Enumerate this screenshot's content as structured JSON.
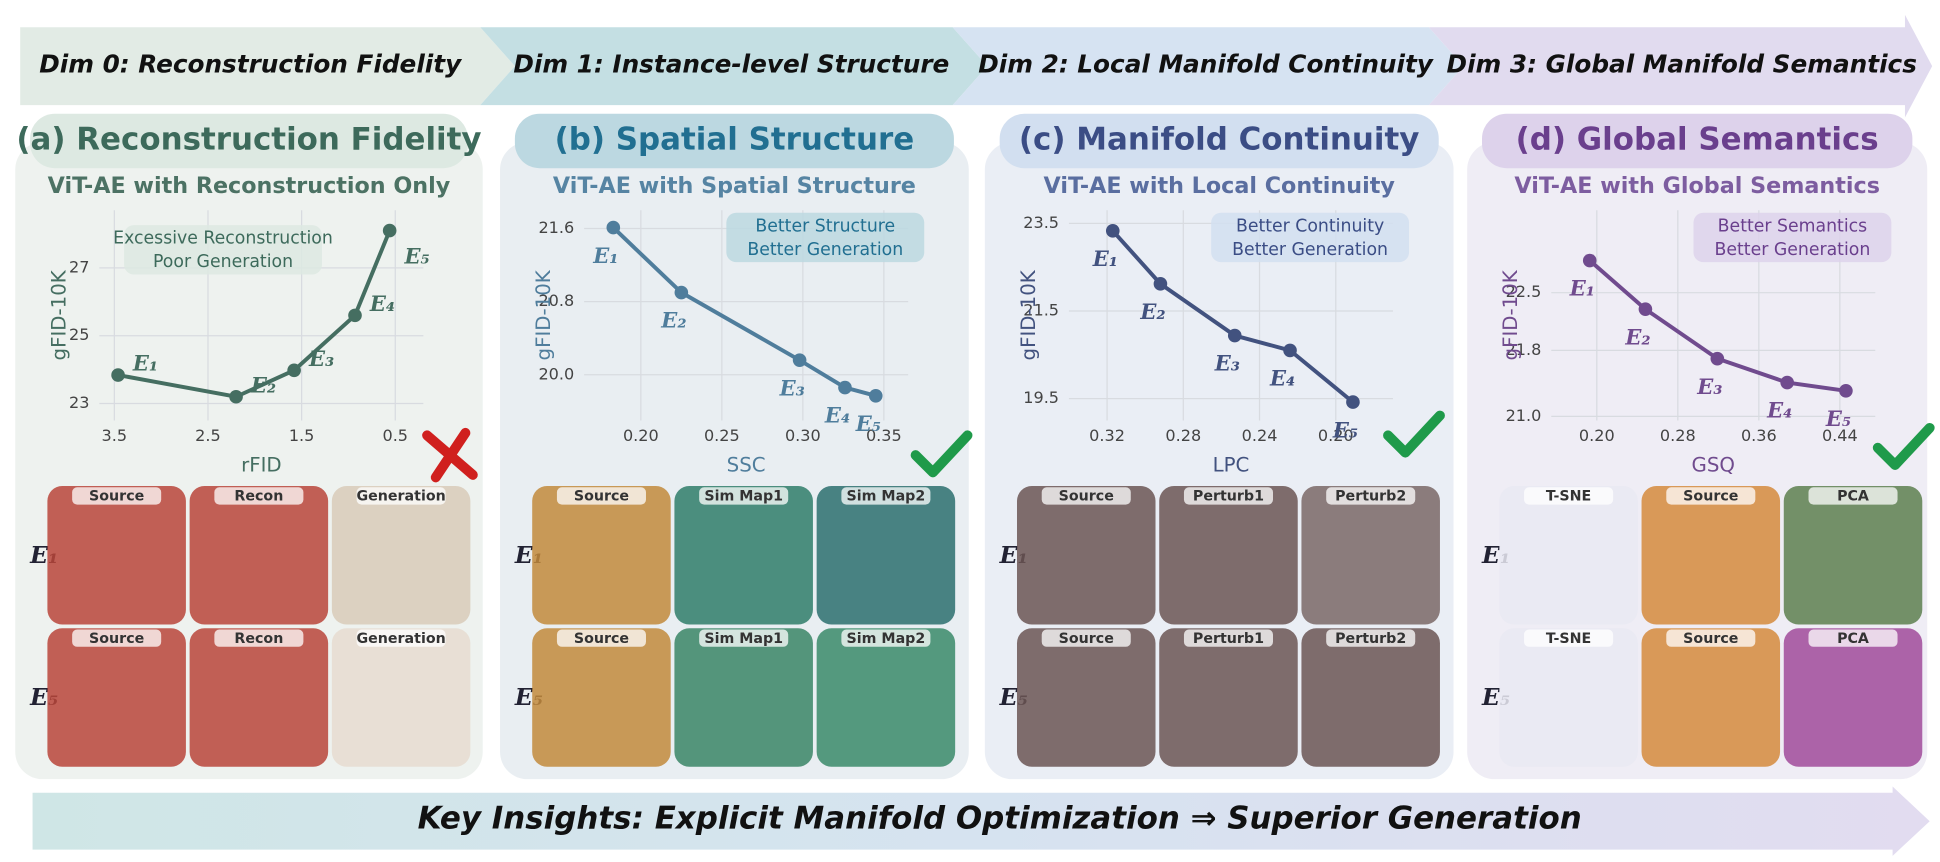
{
  "header": {
    "dims": [
      "Dim 0: Reconstruction Fidelity",
      "Dim 1: Instance-level Structure",
      "Dim 2: Local Manifold Continuity",
      "Dim 3: Global Manifold Semantics"
    ]
  },
  "panels": [
    {
      "title": "(a) Reconstruction Fidelity",
      "subtitle": "ViT-AE with Reconstruction Only",
      "image_rows": [
        {
          "label": "E₁",
          "images": [
            "Source",
            "Recon",
            "Generation"
          ]
        },
        {
          "label": "E₅",
          "images": [
            "Source",
            "Recon",
            "Generation"
          ]
        }
      ]
    },
    {
      "title": "(b) Spatial Structure",
      "subtitle": "ViT-AE with Spatial Structure",
      "image_rows": [
        {
          "label": "E₁",
          "images": [
            "Source",
            "Sim Map1",
            "Sim Map2"
          ]
        },
        {
          "label": "E₅",
          "images": [
            "Source",
            "Sim Map1",
            "Sim Map2"
          ]
        }
      ]
    },
    {
      "title": "(c) Manifold Continuity",
      "subtitle": "ViT-AE with Local Continuity",
      "image_rows": [
        {
          "label": "E₁",
          "images": [
            "Source",
            "Perturb1",
            "Perturb2"
          ]
        },
        {
          "label": "E₅",
          "images": [
            "Source",
            "Perturb1",
            "Perturb2"
          ]
        }
      ]
    },
    {
      "title": "(d) Global Semantics",
      "subtitle": "ViT-AE with Global Semantics",
      "image_rows": [
        {
          "label": "E₁",
          "images": [
            "T-SNE",
            "Source",
            "PCA"
          ]
        },
        {
          "label": "E₅",
          "images": [
            "T-SNE",
            "Source",
            "PCA"
          ]
        }
      ]
    }
  ],
  "chart_data": [
    {
      "type": "line",
      "x_label": "rFID",
      "y_label": "gFID-10K",
      "color": "#456e61",
      "grid": true,
      "x": [
        3.46,
        2.2,
        1.58,
        0.93,
        0.56
      ],
      "values": [
        23.84,
        23.2,
        23.98,
        25.6,
        28.1
      ],
      "point_labels": [
        "E₁",
        "E₂",
        "E₃",
        "E₄",
        "E₅"
      ],
      "xlim": [
        3.66,
        0.2
      ],
      "ylim": [
        22.5,
        28.7
      ],
      "xticks": [
        3.5,
        2.5,
        1.5,
        0.5
      ],
      "yticks": [
        23,
        25,
        27
      ],
      "annotation": [
        "Excessive Reconstruction",
        "Poor Generation"
      ]
    },
    {
      "type": "line",
      "x_label": "SSC",
      "y_label": "gFID-10K",
      "color": "#4f7d9c",
      "grid": true,
      "x": [
        0.183,
        0.225,
        0.298,
        0.326,
        0.345
      ],
      "values": [
        21.61,
        20.9,
        20.16,
        19.86,
        19.77
      ],
      "point_labels": [
        "E₁",
        "E₂",
        "E₃",
        "E₄",
        "E₅"
      ],
      "xlim": [
        0.165,
        0.365
      ],
      "ylim": [
        19.5,
        21.8
      ],
      "xticks": [
        {
          "value": 0.2,
          "label": "0.20"
        },
        0.25,
        {
          "value": 0.3,
          "label": "0.30"
        },
        0.35
      ],
      "yticks": [
        {
          "value": 20,
          "label": "20.0"
        },
        20.8,
        21.6
      ],
      "annotation": [
        "Better Structure",
        "Better Generation"
      ]
    },
    {
      "type": "line",
      "x_label": "LPC",
      "y_label": "gFID-10K",
      "color": "#42527f",
      "grid": true,
      "x": [
        0.317,
        0.292,
        0.253,
        0.224,
        0.191
      ],
      "values": [
        23.33,
        22.12,
        20.94,
        20.6,
        19.42
      ],
      "point_labels": [
        "E₁",
        "E₂",
        "E₃",
        "E₄",
        "E₅"
      ],
      "xlim": [
        0.34,
        0.17
      ],
      "ylim": [
        19.0,
        23.8
      ],
      "xticks": [
        0.32,
        0.28,
        0.24,
        {
          "value": 0.2,
          "label": "0.20"
        }
      ],
      "yticks": [
        19.5,
        21.5,
        23.5
      ],
      "annotation": [
        "Better Continuity",
        "Better Generation"
      ]
    },
    {
      "type": "line",
      "x_label": "GSQ",
      "y_label": "gFID-10K",
      "color": "#704b8e",
      "grid": true,
      "x": [
        0.193,
        0.248,
        0.319,
        0.388,
        0.446
      ],
      "values": [
        22.89,
        22.3,
        21.7,
        21.41,
        21.31
      ],
      "point_labels": [
        "E₁",
        "E₂",
        "E₃",
        "E₄",
        "E₅"
      ],
      "xlim": [
        0.155,
        0.475
      ],
      "ylim": [
        20.95,
        23.5
      ],
      "xticks": [
        {
          "value": 0.2,
          "label": "0.20"
        },
        0.28,
        0.36,
        0.44
      ],
      "yticks": [
        {
          "value": 21,
          "label": "21.0"
        },
        21.8,
        22.5
      ],
      "annotation": [
        "Better Semantics",
        "Better Generation"
      ]
    }
  ],
  "footer": "Key Insights: Explicit Manifold Optimization ⇒ Superior Generation"
}
